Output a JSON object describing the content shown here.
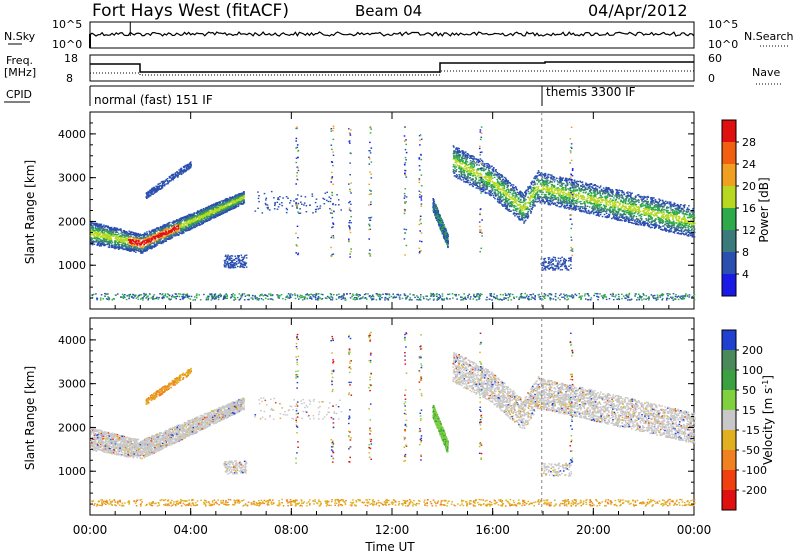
{
  "header": {
    "station": "Fort Hays West (fitACF)",
    "beam": "Beam 04",
    "date": "04/Apr/2012"
  },
  "params": {
    "nsky_label": "N.Sky",
    "nsearch_label": "N.Search",
    "freq_label_1": "Freq.",
    "freq_label_2": "[MHz]",
    "nave_label": "Nave",
    "cpid_label": "CPID",
    "y_top_tick": "10^5",
    "y_bot_tick": "10^0",
    "freq_ticks": [
      "18",
      "8"
    ],
    "nave_ticks": [
      "60",
      "0"
    ],
    "cpid_1": "normal (fast) 151 IF",
    "cpid_2": "themis 3300 IF"
  },
  "chart_data": [
    {
      "type": "heatmap",
      "panel": "power",
      "ylabel": "Slant Range [km]",
      "ylim": [
        0,
        4500
      ],
      "yticks": [
        "1000",
        "2000",
        "3000",
        "4000"
      ],
      "colorbar_label": "Power [dB]",
      "colorbar_ticks": [
        "4",
        "8",
        "12",
        "16",
        "20",
        "24",
        "28"
      ],
      "colors": [
        "#1a1ae6",
        "#2a4fb0",
        "#3a7a7a",
        "#2faa4a",
        "#b8d820",
        "#f0a020",
        "#f06010",
        "#e01010"
      ],
      "features": [
        {
          "t_start": 0.0,
          "t_end": 6.0,
          "range_start": 1700,
          "range_end": 2700
        },
        {
          "t_start": 13.7,
          "t_end": 14.2,
          "range_start": 1700,
          "range_end": 2400
        },
        {
          "t_start": 14.3,
          "t_end": 24.0,
          "range_start": 2000,
          "range_end": 3500
        }
      ]
    },
    {
      "type": "heatmap",
      "panel": "velocity",
      "ylabel": "Slant Range [km]",
      "ylim": [
        0,
        4500
      ],
      "yticks": [
        "1000",
        "2000",
        "3000",
        "4000"
      ],
      "colorbar_label": "Velocity [m s^-1]",
      "colorbar_ticks": [
        "200",
        "100",
        "50",
        "15",
        "-15",
        "-50",
        "-100",
        "-200"
      ],
      "colors": [
        "#2040d0",
        "#4a8a5a",
        "#3aa040",
        "#80d040",
        "#c8c8c8",
        "#e0b020",
        "#f08020",
        "#f04010",
        "#e01010"
      ]
    }
  ],
  "xaxis": {
    "label": "Time UT",
    "ticks": [
      "00:00",
      "04:00",
      "08:00",
      "12:00",
      "16:00",
      "20:00",
      "00:00"
    ]
  }
}
